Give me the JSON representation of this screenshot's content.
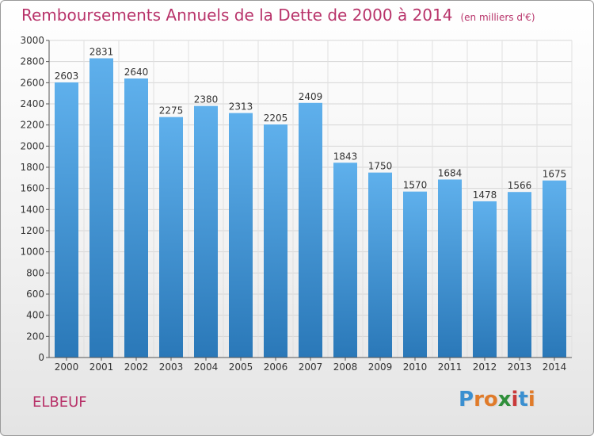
{
  "chart_data": {
    "type": "bar",
    "title": "Remboursements Annuels de la Dette de 2000 à 2014",
    "subtitle": "(en milliers d'€)",
    "categories": [
      "2000",
      "2001",
      "2002",
      "2003",
      "2004",
      "2005",
      "2006",
      "2007",
      "2008",
      "2009",
      "2010",
      "2011",
      "2012",
      "2013",
      "2014"
    ],
    "values": [
      2603,
      2831,
      2640,
      2275,
      2380,
      2313,
      2205,
      2409,
      1843,
      1750,
      1570,
      1684,
      1478,
      1566,
      1675
    ],
    "ylim": [
      0,
      3000
    ],
    "yticks": [
      0,
      200,
      400,
      600,
      800,
      1000,
      1200,
      1400,
      1600,
      1800,
      2000,
      2200,
      2400,
      2600,
      2800,
      3000
    ],
    "grid": true,
    "bar_color_top": "#5fb0ec",
    "bar_color_bottom": "#2a78b8"
  },
  "footer": {
    "town": "ELBEUF",
    "logo": [
      "P",
      "r",
      "o",
      "x",
      "i",
      "t",
      "i"
    ],
    "logo_colors": [
      "#3a8fd0",
      "#e07b2a",
      "#e07b2a",
      "#2f8f3a",
      "#c93a3a",
      "#3a8fd0",
      "#e07b2a"
    ]
  }
}
